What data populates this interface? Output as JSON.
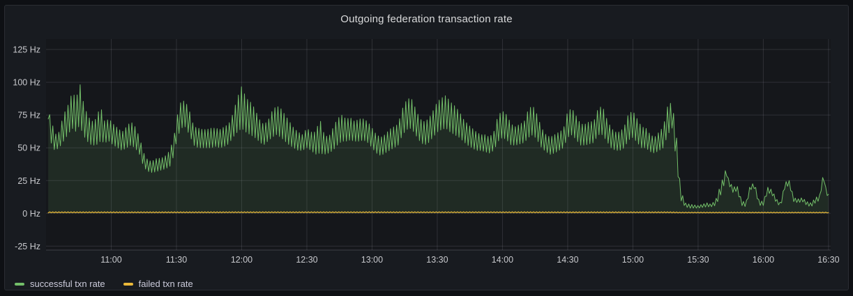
{
  "panel": {
    "title": "Outgoing federation transaction rate"
  },
  "colors": {
    "canvas_background": "#0e1014",
    "panel_background": "#181b20",
    "panel_border": "#2a2d33",
    "plot_background": "#15171b",
    "grid_line": "rgba(204,204,220,0.14)",
    "axis_line": "rgba(204,204,220,0.22)",
    "tick_text": "#c8c9cd",
    "title_text": "#d9dadb",
    "series_green": "#73bf69",
    "series_yellow": "#eab839"
  },
  "chart_data": {
    "type": "line",
    "title": "Outgoing federation transaction rate",
    "grid": true,
    "legend_position": "bottom-left",
    "y_unit": "Hz",
    "x_unit": "time of day (HH:MM)",
    "xlim_minutes": [
      0,
      361
    ],
    "ylim": [
      -28,
      133
    ],
    "x_ticks_minutes": [
      30,
      60,
      90,
      120,
      150,
      180,
      210,
      240,
      270,
      300,
      330,
      360
    ],
    "x_tick_labels": [
      "11:00",
      "11:30",
      "12:00",
      "12:30",
      "13:00",
      "13:30",
      "14:00",
      "14:30",
      "15:00",
      "15:30",
      "16:00",
      "16:30"
    ],
    "y_ticks": [
      -25,
      0,
      25,
      50,
      75,
      100,
      125
    ],
    "y_tick_labels": [
      "-25 Hz",
      "0 Hz",
      "25 Hz",
      "50 Hz",
      "75 Hz",
      "100 Hz",
      "125 Hz"
    ],
    "oscillation_step_minutes": 0.7,
    "series": [
      {
        "name": "successful txn rate",
        "color": "#73bf69",
        "fill_opacity": 0.12,
        "line_width": 1,
        "description": "noisy rate oscillating 50-90 Hz from 10:31 to ~15:20, dip to ~32-45 Hz near 11:20-11:28, peaks ~97-100 Hz near 10:45 and 12:01, sharp drop to ~5 Hz at ~15:21, then bursty 5-30 Hz until 16:30",
        "envelope_t_low_high": [
          [
            1,
            72,
            76
          ],
          [
            2,
            55,
            75
          ],
          [
            4,
            48,
            60
          ],
          [
            6,
            50,
            62
          ],
          [
            8,
            55,
            75
          ],
          [
            10,
            60,
            82
          ],
          [
            12,
            65,
            92
          ],
          [
            14,
            62,
            88
          ],
          [
            15.5,
            68,
            100
          ],
          [
            17,
            60,
            86
          ],
          [
            19,
            55,
            75
          ],
          [
            21,
            52,
            70
          ],
          [
            23,
            52,
            72
          ],
          [
            25,
            55,
            82
          ],
          [
            27,
            54,
            70
          ],
          [
            29,
            55,
            72
          ],
          [
            31,
            52,
            68
          ],
          [
            33,
            50,
            65
          ],
          [
            35,
            48,
            62
          ],
          [
            37,
            50,
            66
          ],
          [
            39,
            52,
            70
          ],
          [
            41,
            50,
            66
          ],
          [
            43,
            45,
            58
          ],
          [
            45,
            35,
            46
          ],
          [
            47,
            32,
            40
          ],
          [
            49,
            31,
            40
          ],
          [
            51,
            32,
            42
          ],
          [
            53,
            33,
            42
          ],
          [
            55,
            34,
            44
          ],
          [
            57,
            36,
            48
          ],
          [
            59,
            45,
            60
          ],
          [
            60,
            55,
            72
          ],
          [
            62,
            65,
            85
          ],
          [
            64,
            66,
            86
          ],
          [
            66,
            60,
            78
          ],
          [
            68,
            52,
            66
          ],
          [
            70,
            50,
            65
          ],
          [
            72,
            50,
            64
          ],
          [
            74,
            50,
            64
          ],
          [
            76,
            50,
            65
          ],
          [
            78,
            51,
            65
          ],
          [
            80,
            50,
            64
          ],
          [
            82,
            51,
            66
          ],
          [
            84,
            53,
            68
          ],
          [
            86,
            58,
            76
          ],
          [
            88,
            62,
            88
          ],
          [
            90,
            65,
            97
          ],
          [
            92,
            62,
            88
          ],
          [
            94,
            60,
            85
          ],
          [
            96,
            58,
            80
          ],
          [
            98,
            55,
            72
          ],
          [
            100,
            52,
            68
          ],
          [
            102,
            55,
            70
          ],
          [
            104,
            58,
            78
          ],
          [
            106,
            60,
            82
          ],
          [
            108,
            58,
            80
          ],
          [
            110,
            55,
            75
          ],
          [
            112,
            52,
            70
          ],
          [
            114,
            50,
            65
          ],
          [
            116,
            48,
            62
          ],
          [
            118,
            48,
            60
          ],
          [
            120,
            50,
            65
          ],
          [
            122,
            48,
            62
          ],
          [
            124,
            45,
            62
          ],
          [
            126,
            46,
            72
          ],
          [
            128,
            45,
            60
          ],
          [
            130,
            46,
            58
          ],
          [
            132,
            48,
            65
          ],
          [
            134,
            52,
            72
          ],
          [
            136,
            55,
            75
          ],
          [
            138,
            55,
            72
          ],
          [
            140,
            56,
            73
          ],
          [
            142,
            55,
            70
          ],
          [
            144,
            55,
            72
          ],
          [
            146,
            56,
            72
          ],
          [
            148,
            54,
            70
          ],
          [
            150,
            50,
            65
          ],
          [
            152,
            46,
            60
          ],
          [
            154,
            44,
            58
          ],
          [
            156,
            46,
            60
          ],
          [
            158,
            48,
            64
          ],
          [
            160,
            50,
            66
          ],
          [
            162,
            52,
            68
          ],
          [
            164,
            60,
            80
          ],
          [
            166,
            64,
            87
          ],
          [
            168,
            65,
            88
          ],
          [
            170,
            60,
            80
          ],
          [
            172,
            55,
            72
          ],
          [
            174,
            52,
            70
          ],
          [
            176,
            54,
            72
          ],
          [
            178,
            58,
            78
          ],
          [
            180,
            62,
            85
          ],
          [
            182,
            64,
            88
          ],
          [
            184,
            65,
            90
          ],
          [
            186,
            62,
            85
          ],
          [
            188,
            60,
            82
          ],
          [
            190,
            58,
            78
          ],
          [
            192,
            55,
            72
          ],
          [
            194,
            52,
            68
          ],
          [
            196,
            50,
            65
          ],
          [
            198,
            48,
            62
          ],
          [
            200,
            48,
            60
          ],
          [
            202,
            47,
            60
          ],
          [
            204,
            46,
            58
          ],
          [
            206,
            48,
            62
          ],
          [
            208,
            55,
            75
          ],
          [
            210,
            58,
            78
          ],
          [
            212,
            56,
            75
          ],
          [
            214,
            52,
            68
          ],
          [
            216,
            52,
            66
          ],
          [
            218,
            53,
            68
          ],
          [
            220,
            54,
            70
          ],
          [
            222,
            58,
            80
          ],
          [
            224,
            60,
            82
          ],
          [
            226,
            56,
            75
          ],
          [
            228,
            50,
            65
          ],
          [
            230,
            47,
            60
          ],
          [
            232,
            45,
            58
          ],
          [
            234,
            46,
            60
          ],
          [
            236,
            48,
            62
          ],
          [
            238,
            50,
            64
          ],
          [
            240,
            58,
            78
          ],
          [
            242,
            60,
            80
          ],
          [
            244,
            56,
            74
          ],
          [
            246,
            52,
            68
          ],
          [
            248,
            52,
            68
          ],
          [
            250,
            53,
            70
          ],
          [
            252,
            54,
            70
          ],
          [
            254,
            60,
            80
          ],
          [
            256,
            60,
            82
          ],
          [
            258,
            55,
            72
          ],
          [
            260,
            50,
            65
          ],
          [
            262,
            48,
            62
          ],
          [
            264,
            48,
            62
          ],
          [
            266,
            50,
            66
          ],
          [
            268,
            56,
            76
          ],
          [
            270,
            58,
            78
          ],
          [
            272,
            54,
            72
          ],
          [
            274,
            50,
            66
          ],
          [
            276,
            50,
            65
          ],
          [
            278,
            47,
            60
          ],
          [
            280,
            46,
            58
          ],
          [
            282,
            48,
            62
          ],
          [
            284,
            50,
            66
          ],
          [
            286,
            60,
            82
          ],
          [
            288,
            65,
            85
          ],
          [
            290,
            40,
            60
          ],
          [
            291,
            25,
            35
          ],
          [
            292,
            10,
            18
          ],
          [
            294,
            5,
            8
          ],
          [
            296,
            4,
            7
          ],
          [
            300,
            4,
            6
          ],
          [
            304,
            5,
            8
          ],
          [
            306,
            5,
            7
          ],
          [
            308,
            6,
            10
          ],
          [
            310,
            12,
            20
          ],
          [
            312,
            22,
            30
          ],
          [
            313,
            30,
            35
          ],
          [
            314,
            22,
            26
          ],
          [
            316,
            16,
            20
          ],
          [
            318,
            17,
            21
          ],
          [
            320,
            6,
            10
          ],
          [
            322,
            5,
            8
          ],
          [
            324,
            18,
            22
          ],
          [
            326,
            19,
            23
          ],
          [
            328,
            6,
            10
          ],
          [
            330,
            6,
            9
          ],
          [
            332,
            16,
            20
          ],
          [
            334,
            14,
            18
          ],
          [
            336,
            8,
            11
          ],
          [
            338,
            5,
            8
          ],
          [
            340,
            20,
            24
          ],
          [
            342,
            21,
            25
          ],
          [
            344,
            9,
            12
          ],
          [
            346,
            8,
            11
          ],
          [
            348,
            9,
            12
          ],
          [
            350,
            6,
            9
          ],
          [
            352,
            5,
            8
          ],
          [
            354,
            8,
            12
          ],
          [
            356,
            10,
            14
          ],
          [
            357,
            22,
            27
          ],
          [
            358,
            24,
            28
          ],
          [
            359,
            14,
            17
          ],
          [
            360,
            13,
            16
          ]
        ]
      },
      {
        "name": "failed txn rate",
        "color": "#eab839",
        "fill_opacity": 0.1,
        "line_width": 1.2,
        "description": "flat near-zero rate (~0.3-1.2 Hz) across the full time range",
        "envelope_t_low_high": [
          [
            1,
            0.4,
            1.1
          ],
          [
            150,
            0.5,
            1.2
          ],
          [
            288,
            0.4,
            1.1
          ],
          [
            292,
            0.3,
            0.9
          ],
          [
            360,
            0.3,
            0.9
          ]
        ]
      }
    ]
  }
}
